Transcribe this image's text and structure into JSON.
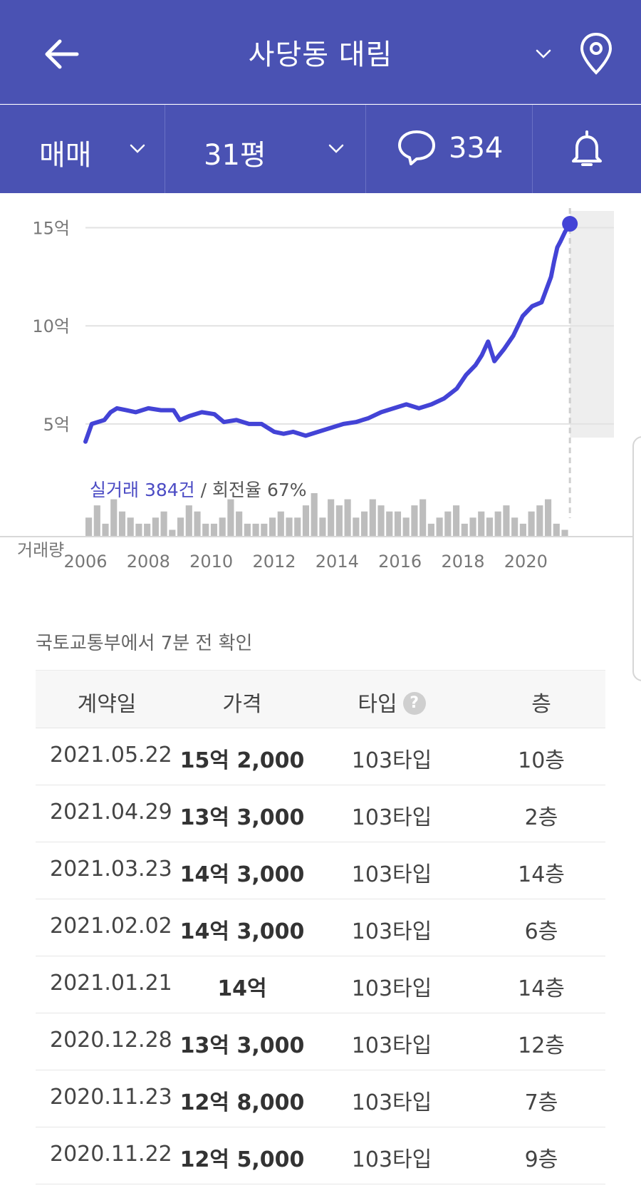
{
  "header": {
    "title": "사당동 대림",
    "back_icon": "arrow-left-icon",
    "dropdown_icon": "chevron-down-icon",
    "location_icon": "map-pin-icon",
    "bg_color": "#4a52b3"
  },
  "filters": {
    "trade_type": "매매",
    "size": "31평",
    "comment_count": "334",
    "comment_icon": "speech-bubble-icon",
    "alert_icon": "bell-icon"
  },
  "chart": {
    "summary_count": "실거래 384건",
    "summary_sep": " / ",
    "summary_turnover": "회전율 67%",
    "volume_label": "거래량",
    "line_color": "#4343d6"
  },
  "chart_data": {
    "type": "line",
    "y_tick_labels": [
      "15억",
      "10억",
      "5억"
    ],
    "y_ticks": [
      15,
      10,
      5
    ],
    "ylim": [
      3,
      16
    ],
    "xlim": [
      2006,
      2022.8
    ],
    "x_tick_labels": [
      "2006",
      "2008",
      "2010",
      "2012",
      "2014",
      "2016",
      "2018",
      "2020"
    ],
    "x_ticks": [
      2006,
      2008,
      2010,
      2012,
      2014,
      2016,
      2018,
      2020
    ],
    "grid": true,
    "series": [
      {
        "x": [
          2006.0,
          2006.2,
          2006.6,
          2006.8,
          2007.0,
          2007.3,
          2007.6,
          2008.0,
          2008.4,
          2008.8,
          2009.0,
          2009.3,
          2009.7,
          2010.1,
          2010.4,
          2010.8,
          2011.2,
          2011.6,
          2012.0,
          2012.3,
          2012.6,
          2013.0,
          2013.4,
          2013.8,
          2014.2,
          2014.6,
          2015.0,
          2015.4,
          2015.8,
          2016.2,
          2016.6,
          2017.0,
          2017.4,
          2017.8,
          2018.1,
          2018.4,
          2018.6,
          2018.8,
          2019.0,
          2019.3,
          2019.6,
          2019.9,
          2020.2,
          2020.5,
          2020.8,
          2020.9,
          2021.0,
          2021.1,
          2021.25,
          2021.4
        ],
        "y": [
          4.1,
          5.0,
          5.2,
          5.6,
          5.8,
          5.7,
          5.6,
          5.8,
          5.7,
          5.7,
          5.2,
          5.4,
          5.6,
          5.5,
          5.1,
          5.2,
          5.0,
          5.0,
          4.6,
          4.5,
          4.6,
          4.4,
          4.6,
          4.8,
          5.0,
          5.1,
          5.3,
          5.6,
          5.8,
          6.0,
          5.8,
          6.0,
          6.3,
          6.8,
          7.5,
          8.0,
          8.5,
          9.2,
          8.2,
          8.8,
          9.5,
          10.5,
          11.0,
          11.2,
          12.5,
          13.3,
          14.0,
          14.3,
          14.8,
          15.2
        ]
      }
    ],
    "volume": [
      3,
      5,
      2,
      6,
      4,
      3,
      2,
      2,
      3,
      4,
      1,
      3,
      5,
      4,
      2,
      2,
      3,
      6,
      4,
      2,
      2,
      2,
      3,
      4,
      3,
      3,
      5,
      7,
      3,
      6,
      5,
      6,
      3,
      4,
      6,
      5,
      4,
      4,
      3,
      5,
      6,
      2,
      3,
      4,
      5,
      2,
      3,
      4,
      3,
      4,
      5,
      3,
      2,
      4,
      5,
      6,
      2,
      1
    ]
  },
  "update_note": "국토교통부에서 7분 전 확인",
  "table": {
    "headers": {
      "date": "계약일",
      "price": "가격",
      "type": "타입",
      "floor": "층"
    },
    "help_icon": "question-circle-icon",
    "rows": [
      {
        "date": "2021.05.22",
        "price": "15억 2,000",
        "type": "103타입",
        "floor": "10층"
      },
      {
        "date": "2021.04.29",
        "price": "13억 3,000",
        "type": "103타입",
        "floor": "2층"
      },
      {
        "date": "2021.03.23",
        "price": "14억 3,000",
        "type": "103타입",
        "floor": "14층"
      },
      {
        "date": "2021.02.02",
        "price": "14억 3,000",
        "type": "103타입",
        "floor": "6층"
      },
      {
        "date": "2021.01.21",
        "price": "14억",
        "type": "103타입",
        "floor": "14층"
      },
      {
        "date": "2020.12.28",
        "price": "13억 3,000",
        "type": "103타입",
        "floor": "12층"
      },
      {
        "date": "2020.11.23",
        "price": "12억 8,000",
        "type": "103타입",
        "floor": "7층"
      },
      {
        "date": "2020.11.22",
        "price": "12억 5,000",
        "type": "103타입",
        "floor": "9층"
      }
    ]
  }
}
